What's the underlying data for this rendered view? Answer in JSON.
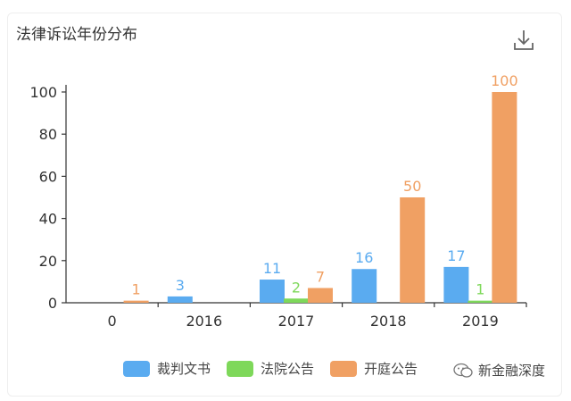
{
  "header": {
    "title": "法律诉讼年份分布",
    "download_icon": "download-icon"
  },
  "watermark": {
    "text": "新金融深度",
    "icon": "wechat-icon"
  },
  "colors": {
    "裁判文书": "#5aabf0",
    "法院公告": "#7ed85a",
    "开庭公告": "#f0a063"
  },
  "chart_data": {
    "type": "bar",
    "title": "法律诉讼年份分布",
    "xlabel": "",
    "ylabel": "",
    "categories": [
      "0",
      "2016",
      "2017",
      "2018",
      "2019"
    ],
    "ylim": [
      0,
      100
    ],
    "yticks": [
      0,
      20,
      40,
      60,
      80,
      100
    ],
    "grid": false,
    "legend": "bottom",
    "series": [
      {
        "name": "裁判文书",
        "values": [
          null,
          3,
          11,
          16,
          17
        ]
      },
      {
        "name": "法院公告",
        "values": [
          null,
          null,
          2,
          null,
          1
        ]
      },
      {
        "name": "开庭公告",
        "values": [
          1,
          null,
          7,
          50,
          100
        ]
      }
    ]
  }
}
